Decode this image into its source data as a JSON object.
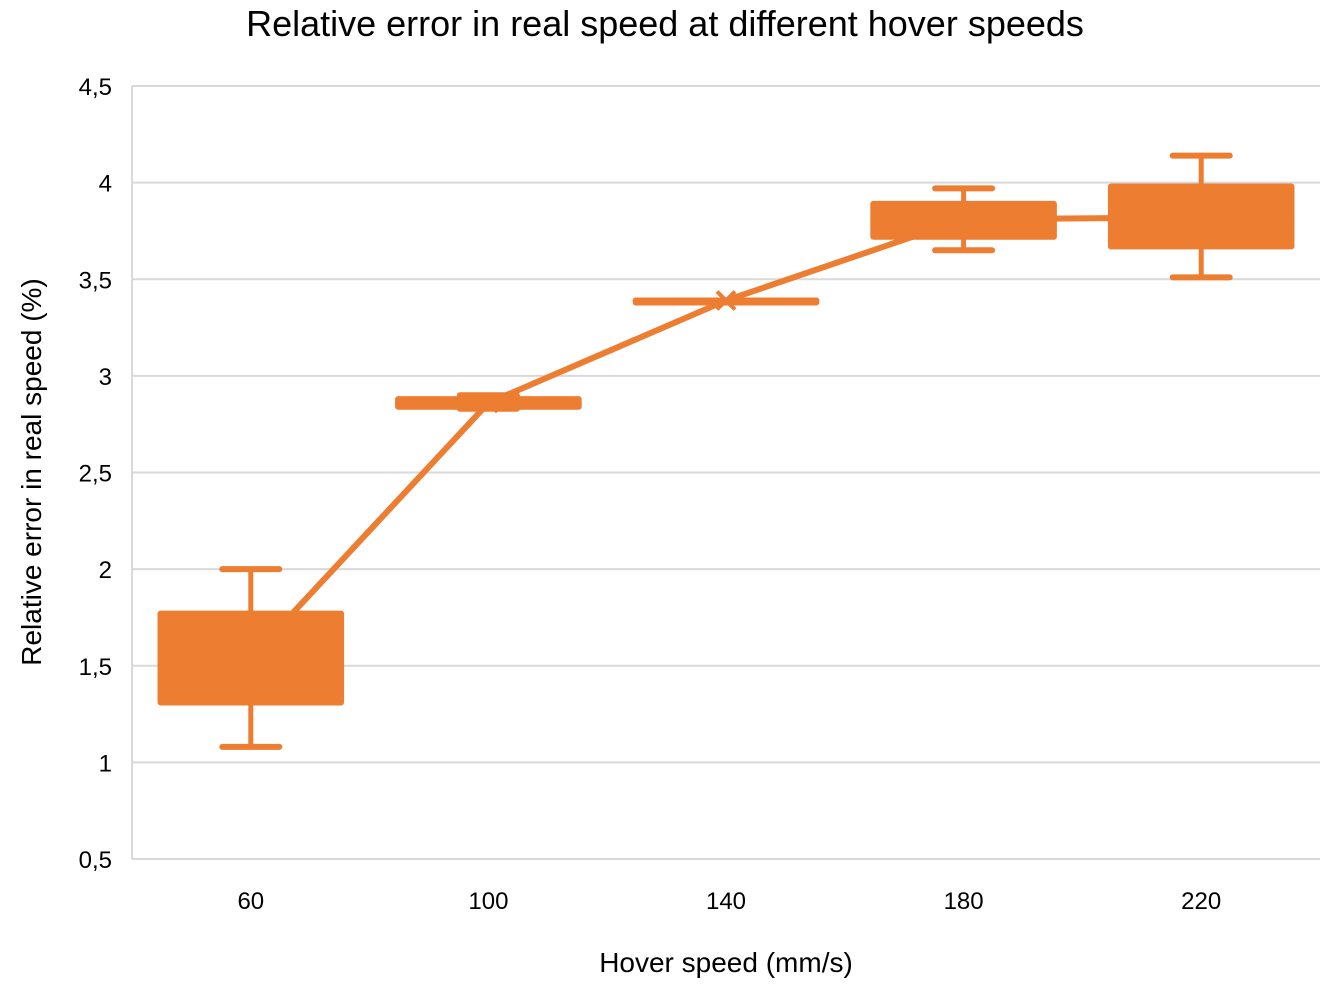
{
  "chart_data": {
    "type": "box",
    "title": "Relative error in real speed at different hover speeds",
    "xlabel": "Hover speed (mm/s)",
    "ylabel": "Relative error in real speed (%)",
    "ylim": [
      0.5,
      4.5
    ],
    "yticks": [
      0.5,
      1,
      1.5,
      2,
      2.5,
      3,
      3.5,
      4,
      4.5
    ],
    "ytick_labels": [
      "0,5",
      "1",
      "1,5",
      "2",
      "2,5",
      "3",
      "3,5",
      "4",
      "4,5"
    ],
    "categories": [
      "60",
      "100",
      "140",
      "180",
      "220"
    ],
    "grid": true,
    "legend": false,
    "color": "#ED7D31",
    "boxes": [
      {
        "category": "60",
        "min": 1.08,
        "q1": 1.31,
        "median": 1.54,
        "q3": 1.77,
        "max": 2.0,
        "mean": 1.54
      },
      {
        "category": "100",
        "min": 2.83,
        "q1": 2.84,
        "median": 2.86,
        "q3": 2.88,
        "max": 2.9,
        "mean": 2.86
      },
      {
        "category": "140",
        "min": 3.39,
        "q1": 3.39,
        "median": 3.39,
        "q3": 3.39,
        "max": 3.39,
        "mean": 3.39
      },
      {
        "category": "180",
        "min": 3.65,
        "q1": 3.72,
        "median": 3.8,
        "q3": 3.89,
        "max": 3.97,
        "mean": 3.81
      },
      {
        "category": "220",
        "min": 3.51,
        "q1": 3.67,
        "median": 3.82,
        "q3": 3.98,
        "max": 4.14,
        "mean": 3.82
      }
    ],
    "mean_line": [
      1.54,
      2.86,
      3.39,
      3.81,
      3.82
    ]
  }
}
